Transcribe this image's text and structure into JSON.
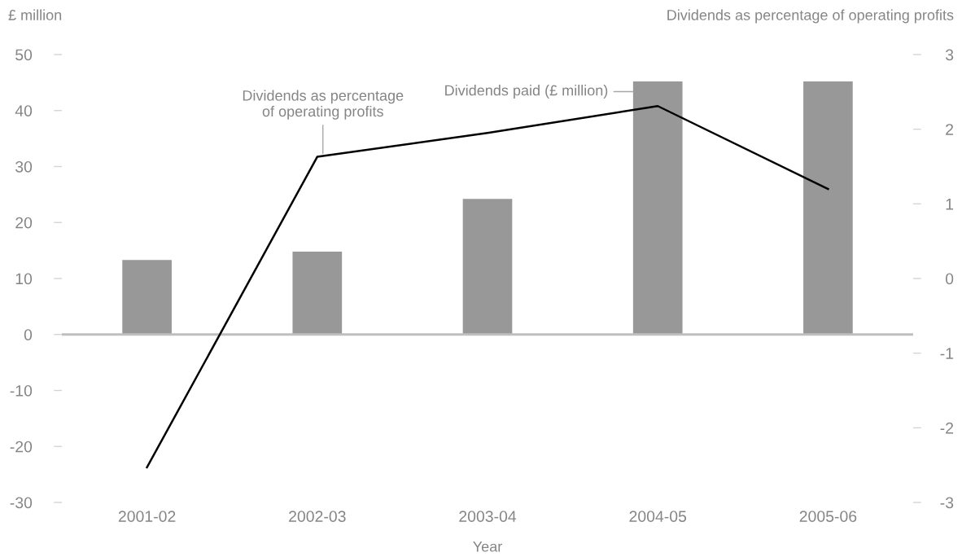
{
  "chart_data": {
    "type": "bar",
    "categories": [
      "2001-02",
      "2002-03",
      "2003-04",
      "2004-05",
      "2005-06"
    ],
    "series": [
      {
        "name": "Dividends paid (£ million)",
        "color": "#989898",
        "values": [
          13.3,
          14.8,
          24.2,
          45.2,
          45.2
        ]
      },
      {
        "name": "Dividends as percentage\nof operating profits",
        "type": "line",
        "axis": "y2",
        "color": "#000000",
        "values": [
          -2.53,
          1.63,
          1.95,
          2.31,
          1.2
        ]
      }
    ],
    "xlabel": "Year",
    "ylabel": "£ million",
    "y2label": "Dividends as percentage of operating profits",
    "ylim": [
      -30,
      50
    ],
    "yticks": [
      -30,
      -20,
      -10,
      0,
      10,
      20,
      30,
      40,
      50
    ],
    "y2lim": [
      -3,
      3
    ],
    "y2ticks": [
      -3,
      -2,
      -1,
      0,
      1,
      2,
      3
    ],
    "ref_lines": [
      {
        "axis": "y",
        "value": 0,
        "color": "#bfbfbf"
      }
    ],
    "grid": false
  }
}
